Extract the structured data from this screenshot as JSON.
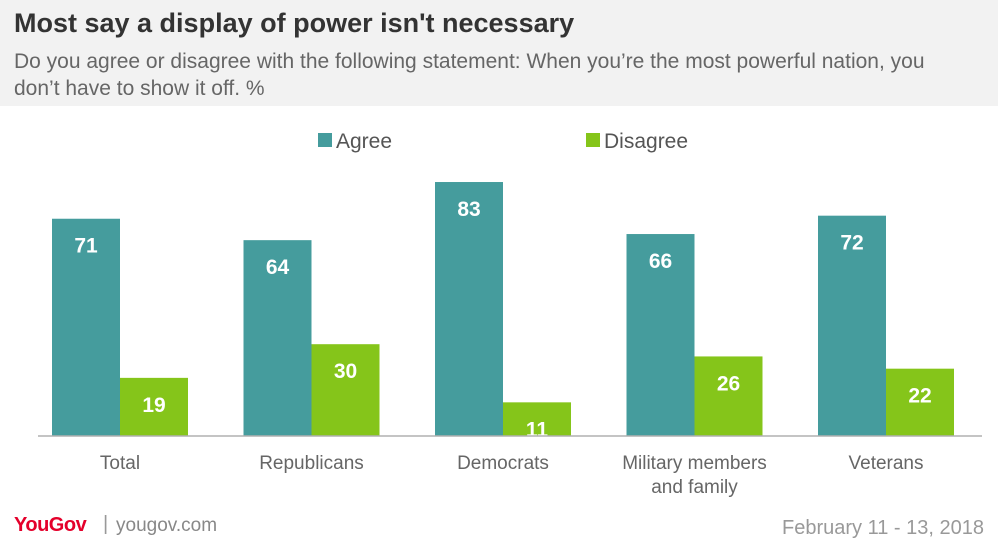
{
  "header": {
    "title": "Most say a display of power isn't necessary",
    "subtitle": "Do you agree or disagree with the following statement: When you’re the most powerful nation, you don’t have to show it off. %"
  },
  "footer": {
    "brand": "YouGov",
    "separator": "|",
    "url": "yougov.com",
    "date": "February 11 - 13, 2018"
  },
  "chart_data": {
    "type": "bar",
    "categories": [
      [
        "Total"
      ],
      [
        "Republicans"
      ],
      [
        "Democrats"
      ],
      [
        "Military members",
        "and family"
      ],
      [
        "Veterans"
      ]
    ],
    "series": [
      {
        "name": "Agree",
        "color": "#459c9d",
        "values": [
          71,
          64,
          83,
          66,
          72
        ]
      },
      {
        "name": "Disagree",
        "color": "#85c51a",
        "values": [
          19,
          30,
          11,
          26,
          22
        ]
      }
    ],
    "ylim": [
      0,
      100
    ],
    "grid": false,
    "legend": "top-center",
    "data_labels": true
  }
}
